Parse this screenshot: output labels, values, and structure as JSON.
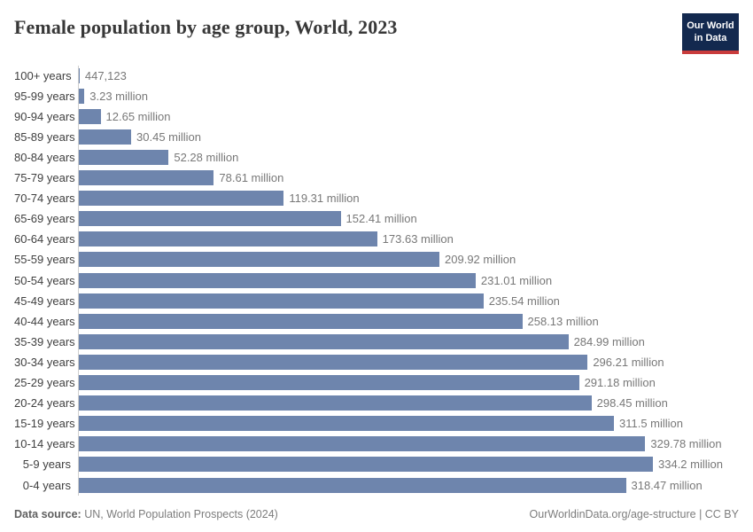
{
  "header": {
    "title": "Female population by age group, World, 2023",
    "logo": {
      "line1": "Our World",
      "line2": "in Data"
    }
  },
  "chart_data": {
    "type": "bar",
    "orientation": "horizontal",
    "title": "Female population by age group, World, 2023",
    "xlabel": "Female population",
    "ylabel": "Age group",
    "xlim": [
      0,
      334.2
    ],
    "unit": "million",
    "grid": false,
    "legend": "none",
    "bar_color": "#6e85ad",
    "categories": [
      "100+ years",
      "95-99 years",
      "90-94 years",
      "85-89 years",
      "80-84 years",
      "75-79 years",
      "70-74 years",
      "65-69 years",
      "60-64 years",
      "55-59 years",
      "50-54 years",
      "45-49 years",
      "40-44 years",
      "35-39 years",
      "30-34 years",
      "25-29 years",
      "20-24 years",
      "15-19 years",
      "10-14 years",
      "5-9 years",
      "0-4 years"
    ],
    "values": [
      0.447123,
      3.23,
      12.65,
      30.45,
      52.28,
      78.61,
      119.31,
      152.41,
      173.63,
      209.92,
      231.01,
      235.54,
      258.13,
      284.99,
      296.21,
      291.18,
      298.45,
      311.5,
      329.78,
      334.2,
      318.47
    ],
    "value_labels": [
      "447,123",
      "3.23 million",
      "12.65 million",
      "30.45 million",
      "52.28 million",
      "78.61 million",
      "119.31 million",
      "152.41 million",
      "173.63 million",
      "209.92 million",
      "231.01 million",
      "235.54 million",
      "258.13 million",
      "284.99 million",
      "296.21 million",
      "291.18 million",
      "298.45 million",
      "311.5 million",
      "329.78 million",
      "334.2 million",
      "318.47 million"
    ]
  },
  "footer": {
    "source_label": "Data source:",
    "source_text": " UN, World Population Prospects (2024)",
    "credit": "OurWorldinData.org/age-structure | CC BY"
  }
}
